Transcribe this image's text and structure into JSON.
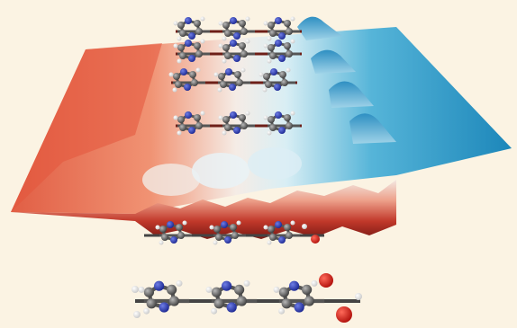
{
  "scene": {
    "description_visible_text": "",
    "colors": {
      "background": "#fbf3e3",
      "surface_warm": "#d9553c",
      "surface_mid": "#f4efe9",
      "surface_cool": "#1d8fc0",
      "carbon": "#6b6b6b",
      "nitrogen": "#2b3bb0",
      "oxygen": "#e1261c",
      "hydrogen": "#ffffff"
    },
    "icons": [
      "molecule-stack",
      "potential-surface",
      "molecule-pair-chain"
    ]
  }
}
